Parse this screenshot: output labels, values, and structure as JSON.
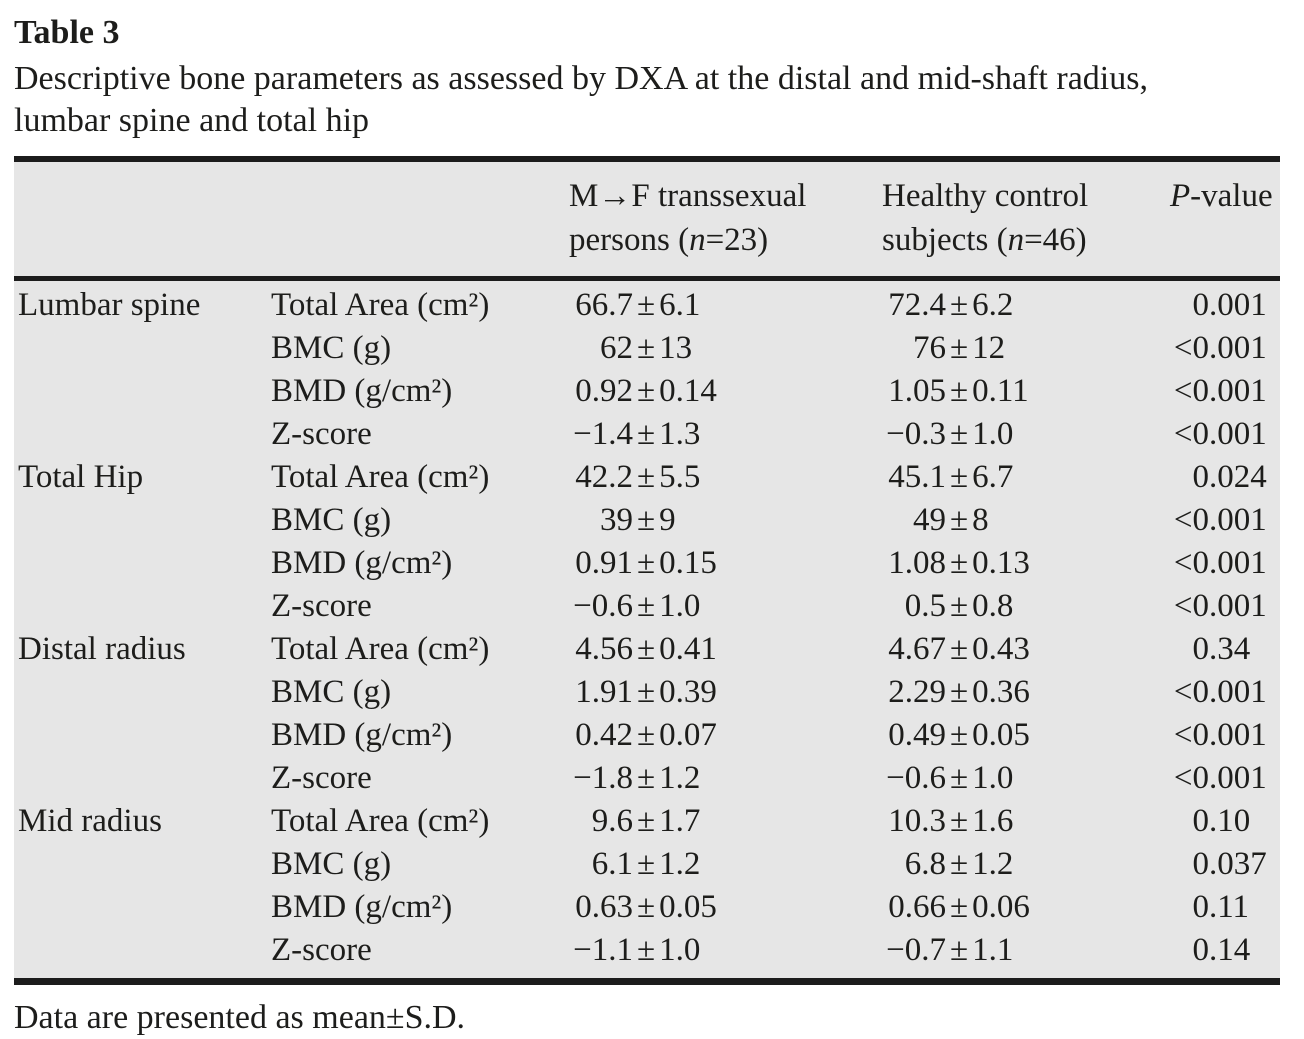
{
  "title": "Table 3",
  "caption_line1": "Descriptive bone parameters as assessed by DXA at the distal and mid-shaft radius,",
  "caption_line2": "lumbar spine and total hip",
  "footnote": "Data are presented as mean±S.D.",
  "colors": {
    "table_background": "#e6e6e6",
    "rule": "#1c1c1c",
    "text": "#1d1d1b"
  },
  "table": {
    "header": {
      "col3_line1": "M→F transsexual",
      "col3_line2_prefix": "persons (",
      "col3_n": "n",
      "col3_line2_suffix": "=23)",
      "col4_line1": "Healthy control",
      "col4_line2_prefix": "subjects (",
      "col4_n": "n",
      "col4_line2_suffix": "=46)",
      "col5_italic": "P",
      "col5_suffix": "-value"
    },
    "rows": [
      {
        "section": "Lumbar spine",
        "parameter": "Total Area (cm²)",
        "mf": "66.7±6.1",
        "hc": "72.4±6.2",
        "p": "0.001"
      },
      {
        "section": "",
        "parameter": "BMC (g)",
        "mf": "62±13",
        "hc": "76±12",
        "p": "<0.001"
      },
      {
        "section": "",
        "parameter": "BMD (g/cm²)",
        "mf": "0.92±0.14",
        "hc": "1.05±0.11",
        "p": "<0.001"
      },
      {
        "section": "",
        "parameter": "Z-score",
        "mf": "−1.4±1.3",
        "hc": "−0.3±1.0",
        "p": "<0.001"
      },
      {
        "section": "Total Hip",
        "parameter": "Total Area (cm²)",
        "mf": "42.2±5.5",
        "hc": "45.1±6.7",
        "p": "0.024"
      },
      {
        "section": "",
        "parameter": "BMC (g)",
        "mf": "39±9",
        "hc": "49±8",
        "p": "<0.001"
      },
      {
        "section": "",
        "parameter": "BMD (g/cm²)",
        "mf": "0.91±0.15",
        "hc": "1.08±0.13",
        "p": "<0.001"
      },
      {
        "section": "",
        "parameter": "Z-score",
        "mf": "−0.6±1.0",
        "hc": "0.5±0.8",
        "p": "<0.001"
      },
      {
        "section": "Distal radius",
        "parameter": "Total Area (cm²)",
        "mf": "4.56±0.41",
        "hc": "4.67±0.43",
        "p": "0.34"
      },
      {
        "section": "",
        "parameter": "BMC (g)",
        "mf": "1.91±0.39",
        "hc": "2.29±0.36",
        "p": "<0.001"
      },
      {
        "section": "",
        "parameter": "BMD (g/cm²)",
        "mf": "0.42±0.07",
        "hc": "0.49±0.05",
        "p": "<0.001"
      },
      {
        "section": "",
        "parameter": "Z-score",
        "mf": "−1.8±1.2",
        "hc": "−0.6±1.0",
        "p": "<0.001"
      },
      {
        "section": "Mid radius",
        "parameter": "Total Area (cm²)",
        "mf": "9.6±1.7",
        "hc": "10.3±1.6",
        "p": "0.10"
      },
      {
        "section": "",
        "parameter": "BMC (g)",
        "mf": "6.1±1.2",
        "hc": "6.8±1.2",
        "p": "0.037"
      },
      {
        "section": "",
        "parameter": "BMD (g/cm²)",
        "mf": "0.63±0.05",
        "hc": "0.66±0.06",
        "p": "0.11"
      },
      {
        "section": "",
        "parameter": "Z-score",
        "mf": "−1.1±1.0",
        "hc": "−0.7±1.1",
        "p": "0.14"
      }
    ]
  }
}
